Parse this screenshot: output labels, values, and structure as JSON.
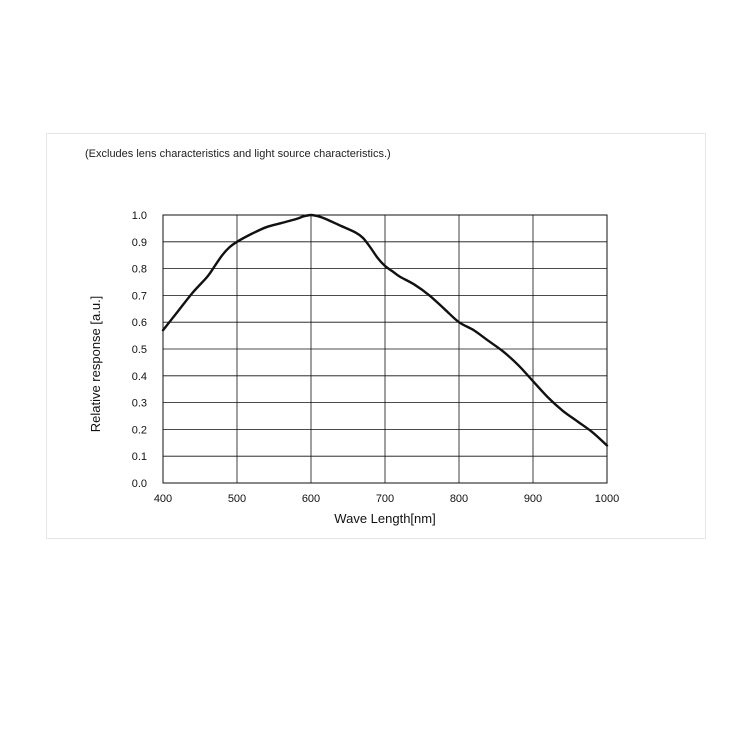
{
  "note": "(Excludes lens characteristics and light source characteristics.)",
  "chart_data": {
    "type": "line",
    "title": "",
    "xlabel": "Wave Length[nm]",
    "ylabel": "Relative response [a.u.]",
    "xlim": [
      400,
      1000
    ],
    "ylim": [
      0.0,
      1.0
    ],
    "xticks": [
      "400",
      "500",
      "600",
      "700",
      "800",
      "900",
      "1000"
    ],
    "yticks": [
      "0.0",
      "0.1",
      "0.2",
      "0.3",
      "0.4",
      "0.5",
      "0.6",
      "0.7",
      "0.8",
      "0.9",
      "1.0"
    ],
    "grid": true,
    "series": [
      {
        "x": [
          400,
          420,
          440,
          460,
          470,
          480,
          490,
          500,
          520,
          540,
          560,
          580,
          590,
          600,
          610,
          620,
          640,
          660,
          670,
          680,
          690,
          700,
          710,
          720,
          740,
          760,
          780,
          800,
          820,
          840,
          860,
          880,
          900,
          920,
          940,
          960,
          980,
          1000
        ],
        "y": [
          0.57,
          0.64,
          0.71,
          0.77,
          0.81,
          0.85,
          0.88,
          0.9,
          0.93,
          0.955,
          0.97,
          0.985,
          0.995,
          1.0,
          0.995,
          0.985,
          0.96,
          0.935,
          0.915,
          0.88,
          0.84,
          0.81,
          0.79,
          0.77,
          0.74,
          0.7,
          0.65,
          0.6,
          0.57,
          0.53,
          0.49,
          0.44,
          0.38,
          0.32,
          0.27,
          0.23,
          0.19,
          0.14
        ],
        "color": "#111111"
      }
    ]
  }
}
